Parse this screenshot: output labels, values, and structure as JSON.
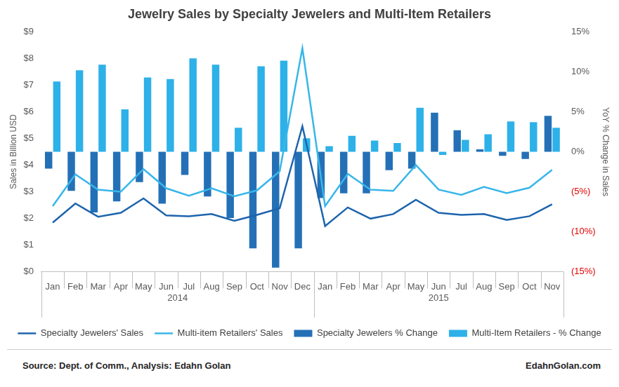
{
  "chart_data": {
    "type": "bar",
    "title": "Jewelry Sales by Specialty Jewelers and Multi-Item Retailers",
    "y_label": "Sales in Billion USD",
    "y2_label": "YoY % Change in Sales",
    "source": "Source: Dept. of Comm., Analysis: Edahn Golan",
    "credit": "EdahnGolan.com",
    "categories": [
      "Jan",
      "Feb",
      "Mar",
      "Apr",
      "May",
      "Jun",
      "Jul",
      "Aug",
      "Sep",
      "Oct",
      "Nov",
      "Dec",
      "Jan",
      "Feb",
      "Mar",
      "Apr",
      "May",
      "Jun",
      "Jul",
      "Aug",
      "Sep",
      "Oct",
      "Nov"
    ],
    "category_groups": [
      {
        "label": "2014",
        "count": 12
      },
      {
        "label": "2015",
        "count": 11
      }
    ],
    "series": [
      {
        "name": "Specialty Jewelers % Change",
        "type": "bar",
        "axis": "y2",
        "color": "#2470b6",
        "values": [
          -2.1,
          -4.9,
          -7.6,
          -6.2,
          -3.8,
          -6.5,
          -2.9,
          -5.6,
          -8.3,
          -12.1,
          -14.5,
          -12.1,
          -5.8,
          -5.2,
          -5.2,
          -2.3,
          -2.1,
          4.9,
          2.7,
          0.3,
          -0.5,
          -0.9,
          4.5
        ]
      },
      {
        "name": "Multi-Item Retailers - % Change",
        "type": "bar",
        "axis": "y2",
        "color": "#2db1e8",
        "values": [
          8.8,
          10.2,
          10.9,
          5.3,
          9.3,
          9.1,
          11.7,
          10.9,
          3.0,
          10.7,
          11.4,
          1.7,
          0.7,
          2.0,
          1.4,
          1.1,
          5.5,
          -0.4,
          1.5,
          2.2,
          3.8,
          3.7,
          3.0
        ]
      },
      {
        "name": "Specialty Jewelers' Sales",
        "type": "line",
        "color": "#1d64ad",
        "values": [
          1.84,
          2.56,
          2.06,
          2.21,
          2.75,
          2.11,
          2.08,
          2.16,
          1.91,
          2.13,
          2.38,
          5.46,
          1.71,
          2.41,
          1.99,
          2.16,
          2.7,
          2.21,
          2.13,
          2.16,
          1.94,
          2.08,
          2.53
        ]
      },
      {
        "name": "Multi-item Retailers' Sales",
        "type": "line",
        "color": "#38b6ea",
        "values": [
          2.46,
          3.65,
          3.08,
          3.0,
          3.85,
          3.13,
          2.85,
          3.13,
          2.83,
          3.05,
          3.77,
          8.39,
          2.46,
          3.67,
          3.08,
          3.03,
          4.0,
          3.08,
          2.88,
          3.18,
          2.95,
          3.15,
          3.82
        ]
      }
    ],
    "ylim": [
      0,
      9
    ],
    "yticks": [
      {
        "value": 0,
        "label": "$0"
      },
      {
        "value": 1,
        "label": "$1"
      },
      {
        "value": 2,
        "label": "$2"
      },
      {
        "value": 3,
        "label": "$3"
      },
      {
        "value": 4,
        "label": "$4"
      },
      {
        "value": 5,
        "label": "$5"
      },
      {
        "value": 6,
        "label": "$6"
      },
      {
        "value": 7,
        "label": "$7"
      },
      {
        "value": 8,
        "label": "$8"
      },
      {
        "value": 9,
        "label": "$9"
      }
    ],
    "y2lim": [
      -15,
      15
    ],
    "y2ticks": [
      {
        "value": -15,
        "label": "(15%)"
      },
      {
        "value": -10,
        "label": "(10%)"
      },
      {
        "value": -5,
        "label": "(5%)"
      },
      {
        "value": 0,
        "label": "0%"
      },
      {
        "value": 5,
        "label": "5%"
      },
      {
        "value": 10,
        "label": "10%"
      },
      {
        "value": 15,
        "label": "15%"
      }
    ],
    "grid": false,
    "legend": "bottom"
  }
}
